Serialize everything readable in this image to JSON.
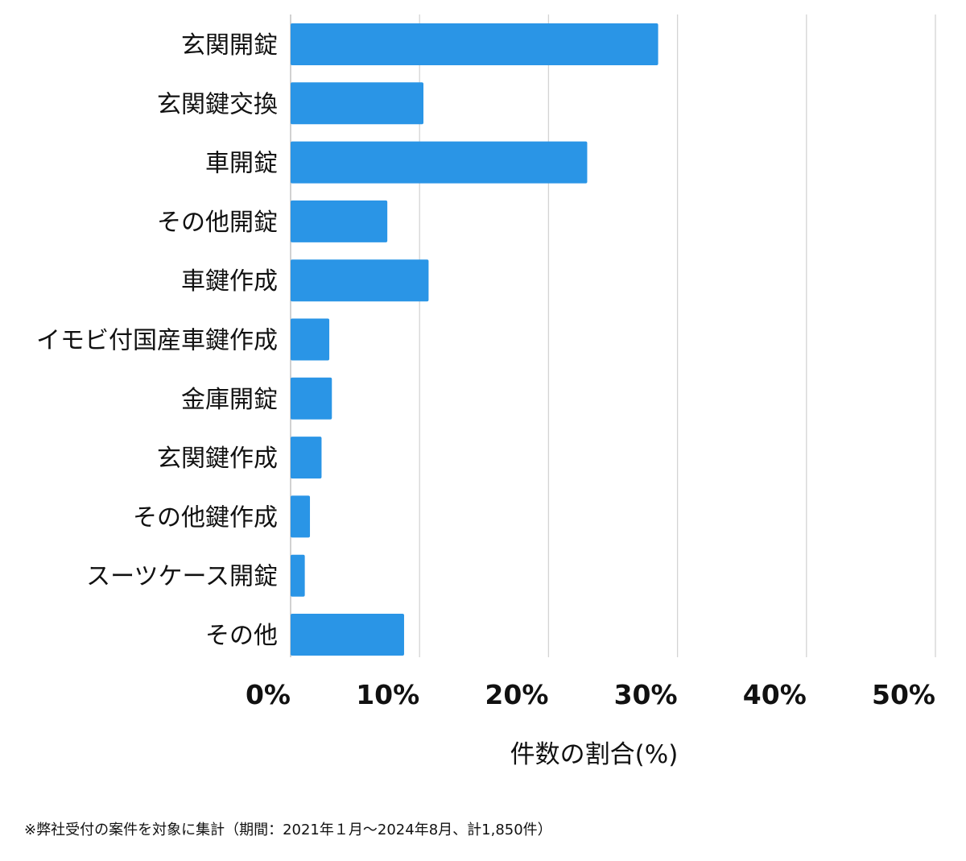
{
  "chart_data": {
    "type": "bar",
    "orientation": "horizontal",
    "categories": [
      "玄関開錠",
      "玄関鍵交換",
      "車開錠",
      "その他開錠",
      "車鍵作成",
      "イモビ付国産車鍵作成",
      "金庫開錠",
      "玄関鍵作成",
      "その他鍵作成",
      "スーツケース開錠",
      "その他"
    ],
    "values": [
      28.5,
      10.3,
      23.0,
      7.5,
      10.7,
      3.0,
      3.2,
      2.4,
      1.5,
      1.1,
      8.8
    ],
    "xlim": [
      0,
      50
    ],
    "xticks": [
      0,
      10,
      20,
      30,
      40,
      50
    ],
    "xtick_labels": [
      "0%",
      "10%",
      "20%",
      "30%",
      "40%",
      "50%"
    ],
    "xlabel": "件数の割合(%)",
    "ylabel": "",
    "title": "",
    "grid": "vertical",
    "legend": "none",
    "bar_color": "#2a95e6"
  },
  "footnote": "※弊社受付の案件を対象に集計（期間：2021年１月〜2024年8月、計1,850件）"
}
